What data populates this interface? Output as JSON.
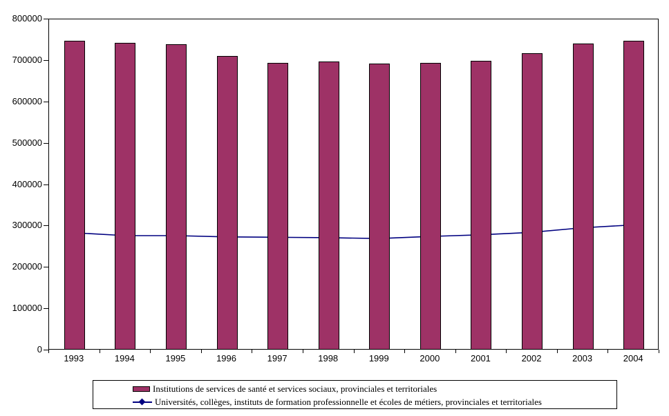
{
  "chart_data": {
    "type": "bar+line",
    "title": "",
    "xlabel": "",
    "ylabel": "",
    "categories": [
      "1993",
      "1994",
      "1995",
      "1996",
      "1997",
      "1998",
      "1999",
      "2000",
      "2001",
      "2002",
      "2003",
      "2004"
    ],
    "series": [
      {
        "name": "Institutions de services de santé et services sociaux, provinciales et territoriales",
        "type": "bar",
        "color": "#9E3266",
        "values": [
          745000,
          740000,
          737000,
          708000,
          691000,
          695000,
          690000,
          691000,
          696000,
          715000,
          738000,
          745000
        ]
      },
      {
        "name": "Universités, collèges, instituts de formation professionnelle et écoles de métiers, provinciales et territoriales",
        "type": "line",
        "marker": "diamond",
        "color": "#000080",
        "values": [
          282000,
          275000,
          275000,
          272000,
          271000,
          270000,
          268000,
          273000,
          277000,
          283000,
          294000,
          301000
        ]
      }
    ],
    "ylim": [
      0,
      800000
    ],
    "ytick_step": 100000,
    "ytick_labels": [
      "0",
      "100000",
      "200000",
      "300000",
      "400000",
      "500000",
      "600000",
      "700000",
      "800000"
    ],
    "grid": false,
    "legend_position": "bottom"
  },
  "legend": {
    "items": [
      {
        "label": "Institutions de services de santé et services sociaux, provinciales et territoriales"
      },
      {
        "label": "Universités, collèges, instituts de formation professionnelle et écoles de métiers, provinciales et territoriales"
      }
    ]
  },
  "colors": {
    "bar_fill": "#9E3266",
    "line_stroke": "#000080",
    "axis": "#000000",
    "background": "#FFFFFF"
  }
}
